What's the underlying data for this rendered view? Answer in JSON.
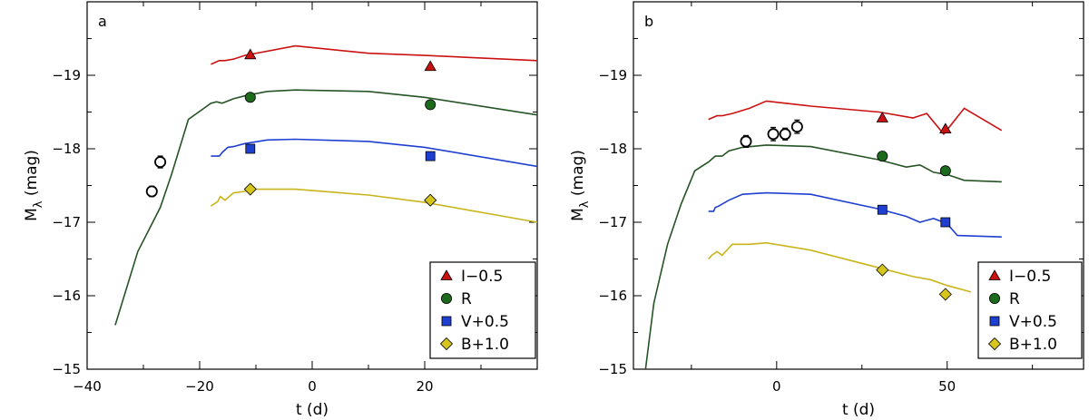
{
  "chart_data": [
    {
      "type": "line",
      "panel_label": "a",
      "xlabel": "t (d)",
      "ylabel": "M",
      "ylabel_sub": "λ",
      "ylabel_unit": "(mag)",
      "xlim": [
        -40,
        40
      ],
      "ylim": [
        -15,
        -20
      ],
      "xticks": [
        -40,
        -20,
        0,
        20
      ],
      "xtick_labels": [
        "−40",
        "−20",
        "0",
        "20"
      ],
      "yticks": [
        -15,
        -16,
        -17,
        -18,
        -19
      ],
      "ytick_labels": [
        "−15",
        "−16",
        "−17",
        "−18",
        "−19"
      ],
      "legend": [
        {
          "label": "I−0.5",
          "marker": "triangle",
          "color": "#cc1111"
        },
        {
          "label": "R",
          "marker": "circle",
          "color": "#1c6b1c"
        },
        {
          "label": "V+0.5",
          "marker": "square",
          "color": "#1f3fd1"
        },
        {
          "label": "B+1.0",
          "marker": "diamond",
          "color": "#d6c51c"
        }
      ],
      "series": [
        {
          "name": "I−0.5 model",
          "color": "#cc1111",
          "x": [
            -18,
            -16.5,
            -15.5,
            -14,
            -12,
            -3,
            10,
            20,
            40
          ],
          "y": [
            -19.15,
            -19.2,
            -19.2,
            -19.22,
            -19.27,
            -19.4,
            -19.3,
            -19.27,
            -19.2
          ]
        },
        {
          "name": "R model",
          "color": "#255425",
          "x": [
            -35,
            -31,
            -27,
            -25,
            -22,
            -18,
            -17,
            -16,
            -14,
            -12,
            -8,
            -3,
            10,
            20,
            40
          ],
          "y": [
            -15.6,
            -16.6,
            -17.2,
            -17.65,
            -18.4,
            -18.62,
            -18.64,
            -18.62,
            -18.68,
            -18.72,
            -18.78,
            -18.8,
            -18.78,
            -18.7,
            -18.46
          ]
        },
        {
          "name": "V+0.5 model",
          "color": "#1f3fd1",
          "x": [
            -18,
            -16.5,
            -16,
            -15,
            -14,
            -12,
            -8,
            -3,
            10,
            20,
            40
          ],
          "y": [
            -17.9,
            -17.9,
            -17.95,
            -18.02,
            -18.03,
            -18.07,
            -18.12,
            -18.13,
            -18.1,
            -18.02,
            -17.76
          ]
        },
        {
          "name": "B+1.0 model",
          "color": "#c9b51a",
          "x": [
            -18,
            -16.8,
            -16.3,
            -15.5,
            -14,
            -12,
            -10,
            -3,
            10,
            20,
            40
          ],
          "y": [
            -17.22,
            -17.28,
            -17.35,
            -17.3,
            -17.4,
            -17.42,
            -17.45,
            -17.45,
            -17.37,
            -17.27,
            -17.0
          ]
        }
      ],
      "points": [
        {
          "name": "I−0.5",
          "marker": "triangle",
          "color": "#cc1111",
          "x": [
            -11,
            21
          ],
          "y": [
            -19.28,
            -19.12
          ]
        },
        {
          "name": "R",
          "marker": "circle",
          "color": "#1c6b1c",
          "x": [
            -11,
            21
          ],
          "y": [
            -18.7,
            -18.6
          ]
        },
        {
          "name": "V+0.5",
          "marker": "square",
          "color": "#1f3fd1",
          "x": [
            -11,
            21
          ],
          "y": [
            -18.0,
            -17.9
          ]
        },
        {
          "name": "B+1.0",
          "marker": "diamond",
          "color": "#d6c51c",
          "x": [
            -11,
            21
          ],
          "y": [
            -17.45,
            -17.3
          ]
        },
        {
          "name": "R (open)",
          "marker": "open-circle",
          "color": "#1c6b1c",
          "x": [
            -28.5,
            -27
          ],
          "y": [
            -17.42,
            -17.82
          ],
          "err": [
            0.07,
            0.08
          ]
        }
      ]
    },
    {
      "type": "line",
      "panel_label": "b",
      "xlabel": "t (d)",
      "ylabel": "M",
      "ylabel_sub": "λ",
      "ylabel_unit": "(mag)",
      "xlim": [
        -42,
        90
      ],
      "ylim": [
        -15,
        -20
      ],
      "xticks": [
        0,
        50
      ],
      "xtick_labels": [
        "0",
        "50"
      ],
      "minor_xticks": [
        -25,
        25,
        75
      ],
      "yticks": [
        -15,
        -16,
        -17,
        -18,
        -19
      ],
      "ytick_labels": [
        "−15",
        "−16",
        "−17",
        "−18",
        "−19"
      ],
      "legend": [
        {
          "label": "I−0.5",
          "marker": "triangle",
          "color": "#cc1111"
        },
        {
          "label": "R",
          "marker": "circle",
          "color": "#1c6b1c"
        },
        {
          "label": "V+0.5",
          "marker": "square",
          "color": "#1f3fd1"
        },
        {
          "label": "B+1.0",
          "marker": "diamond",
          "color": "#d6c51c"
        }
      ],
      "series": [
        {
          "name": "I−0.5 model",
          "color": "#cc1111",
          "x": [
            -20,
            -19,
            -17.5,
            -16,
            -13,
            -8,
            -3,
            10,
            30,
            40,
            44,
            49,
            55,
            66
          ],
          "y": [
            -18.4,
            -18.42,
            -18.45,
            -18.45,
            -18.48,
            -18.55,
            -18.65,
            -18.58,
            -18.5,
            -18.42,
            -18.48,
            -18.2,
            -18.55,
            -18.25
          ]
        },
        {
          "name": "R model",
          "color": "#255425",
          "x": [
            -39,
            -36,
            -32,
            -28,
            -24,
            -20,
            -18,
            -16,
            -14,
            -10,
            -3,
            10,
            30,
            38,
            42,
            46,
            50,
            55,
            66
          ],
          "y": [
            -14.8,
            -15.9,
            -16.7,
            -17.25,
            -17.7,
            -17.82,
            -17.9,
            -17.9,
            -17.97,
            -18.02,
            -18.05,
            -18.03,
            -17.85,
            -17.75,
            -17.78,
            -17.68,
            -17.65,
            -17.57,
            -17.55
          ]
        },
        {
          "name": "V+0.5 model",
          "color": "#1f3fd1",
          "x": [
            -20,
            -18.5,
            -18,
            -17,
            -14,
            -10,
            -3,
            10,
            30,
            38,
            42,
            46,
            50,
            53,
            66
          ],
          "y": [
            -17.15,
            -17.15,
            -17.2,
            -17.22,
            -17.3,
            -17.38,
            -17.4,
            -17.38,
            -17.18,
            -17.08,
            -17.0,
            -17.05,
            -16.98,
            -16.82,
            -16.8
          ]
        },
        {
          "name": "B+1.0 model",
          "color": "#c9b51a",
          "x": [
            -20,
            -19,
            -17.5,
            -16,
            -13,
            -8,
            -3,
            10,
            30,
            40,
            45,
            50,
            57
          ],
          "y": [
            -16.5,
            -16.55,
            -16.6,
            -16.55,
            -16.7,
            -16.7,
            -16.72,
            -16.62,
            -16.38,
            -16.26,
            -16.22,
            -16.14,
            -16.05
          ]
        }
      ],
      "points": [
        {
          "name": "I−0.5",
          "marker": "triangle",
          "color": "#cc1111",
          "x": [
            31,
            49.5
          ],
          "y": [
            -18.42,
            -18.27
          ]
        },
        {
          "name": "R",
          "marker": "circle",
          "color": "#1c6b1c",
          "x": [
            31,
            49.5
          ],
          "y": [
            -17.9,
            -17.7
          ]
        },
        {
          "name": "V+0.5",
          "marker": "square",
          "color": "#1f3fd1",
          "x": [
            31,
            49.5
          ],
          "y": [
            -17.17,
            -17.0
          ]
        },
        {
          "name": "B+1.0",
          "marker": "diamond",
          "color": "#d6c51c",
          "x": [
            31,
            49.5
          ],
          "y": [
            -16.35,
            -16.02
          ]
        },
        {
          "name": "R (open)",
          "marker": "open-circle",
          "color": "#1c6b1c",
          "x": [
            -9,
            -1,
            2.5,
            6
          ],
          "y": [
            -18.1,
            -18.2,
            -18.2,
            -18.3
          ],
          "err": [
            0.08,
            0.09,
            0.08,
            0.09
          ]
        }
      ]
    }
  ]
}
